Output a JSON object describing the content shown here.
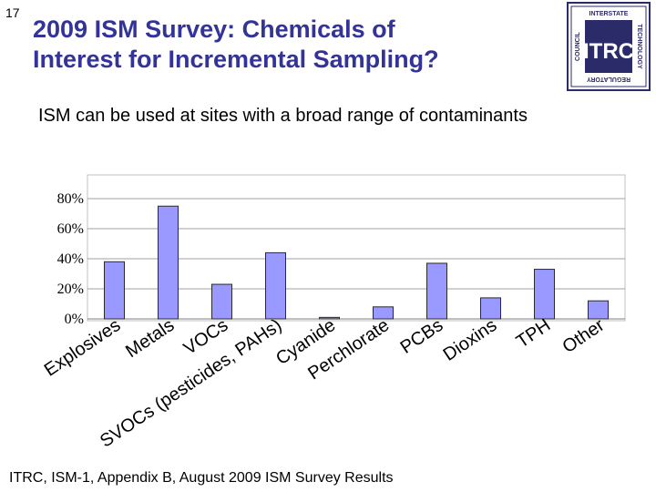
{
  "slide": {
    "number": "17",
    "title_line1": "2009 ISM Survey: Chemicals of",
    "title_line2": "Interest for Incremental Sampling?",
    "subtitle": "ISM can be used at sites with a broad range of contaminants",
    "source": "ITRC, ISM-1, Appendix B, August 2009 ISM Survey Results"
  },
  "logo": {
    "text": "ITRC",
    "ring_top": "INTERSTATE",
    "ring_right": "TECHNOLOGY",
    "ring_bottom": "REGULATORY",
    "ring_left": "COUNCIL",
    "color": "#2b2b6a"
  },
  "chart_data": {
    "type": "bar",
    "categories": [
      "Explosives",
      "Metals",
      "VOCs",
      "SVOCs (pesticides, PAHs)",
      "Cyanide",
      "Perchlorate",
      "PCBs",
      "Dioxins",
      "TPH",
      "Other"
    ],
    "values": [
      38,
      75,
      23,
      44,
      1,
      8,
      37,
      14,
      33,
      12
    ],
    "yticks": [
      "0%",
      "20%",
      "40%",
      "60%",
      "80%"
    ],
    "ylim": [
      0,
      85
    ],
    "grid": true,
    "bar_color": "#9999ff",
    "xlabel": "",
    "ylabel": ""
  }
}
